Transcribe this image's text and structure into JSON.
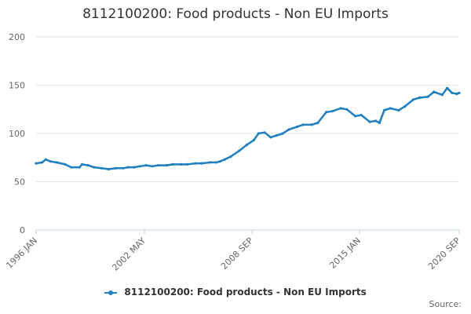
{
  "title": "8112100200: Food products - Non EU Imports",
  "legend_label": "8112100200: Food products - Non EU Imports",
  "credit": "Source:",
  "colors": {
    "series": "#1f7fbf",
    "grid": "#e6e6e6",
    "axis": "#c0d0e0"
  },
  "chart_data": {
    "type": "line",
    "title": "8112100200: Food products - Non EU Imports",
    "xlabel": "",
    "ylabel": "",
    "ylim": [
      0,
      200
    ],
    "yticks": [
      "0",
      "50",
      "100",
      "150",
      "200"
    ],
    "xticks": [
      "1996 JAN",
      "2002 MAY",
      "2008 SEP",
      "2015 JAN",
      "2020 SEP"
    ],
    "grid": true,
    "legend": "bottom-center",
    "series": [
      {
        "name": "8112100200: Food products - Non EU Imports",
        "points": [
          [
            "1996-01",
            69
          ],
          [
            "1996-06",
            70
          ],
          [
            "1996-09",
            73
          ],
          [
            "1997-01",
            71
          ],
          [
            "1997-06",
            70
          ],
          [
            "1998-01",
            68
          ],
          [
            "1998-06",
            65
          ],
          [
            "1999-01",
            65
          ],
          [
            "1999-03",
            68
          ],
          [
            "1999-08",
            67
          ],
          [
            "2000-01",
            65
          ],
          [
            "2000-07",
            64
          ],
          [
            "2001-01",
            63
          ],
          [
            "2001-07",
            64
          ],
          [
            "2002-01",
            64
          ],
          [
            "2002-05",
            65
          ],
          [
            "2002-10",
            65
          ],
          [
            "2003-03",
            66
          ],
          [
            "2003-08",
            67
          ],
          [
            "2004-01",
            66
          ],
          [
            "2004-06",
            67
          ],
          [
            "2005-01",
            67
          ],
          [
            "2005-06",
            68
          ],
          [
            "2006-01",
            68
          ],
          [
            "2006-06",
            68
          ],
          [
            "2007-01",
            69
          ],
          [
            "2007-06",
            69
          ],
          [
            "2008-01",
            70
          ],
          [
            "2008-06",
            70
          ],
          [
            "2008-09",
            71
          ],
          [
            "2009-01",
            73
          ],
          [
            "2009-06",
            76
          ],
          [
            "2010-01",
            82
          ],
          [
            "2010-07",
            88
          ],
          [
            "2011-01",
            93
          ],
          [
            "2011-05",
            100
          ],
          [
            "2011-10",
            101
          ],
          [
            "2012-03",
            96
          ],
          [
            "2012-08",
            98
          ],
          [
            "2013-01",
            100
          ],
          [
            "2013-06",
            104
          ],
          [
            "2014-01",
            107
          ],
          [
            "2014-06",
            109
          ],
          [
            "2015-01",
            109
          ],
          [
            "2015-06",
            111
          ],
          [
            "2016-01",
            122
          ],
          [
            "2016-06",
            123
          ],
          [
            "2017-01",
            126
          ],
          [
            "2017-06",
            125
          ],
          [
            "2018-01",
            118
          ],
          [
            "2018-06",
            119
          ],
          [
            "2019-01",
            112
          ],
          [
            "2019-06",
            113
          ],
          [
            "2019-09",
            111
          ],
          [
            "2020-01",
            124
          ],
          [
            "2020-06",
            126
          ],
          [
            "2021-01",
            124
          ],
          [
            "2021-06",
            128
          ],
          [
            "2022-01",
            135
          ],
          [
            "2022-06",
            137
          ],
          [
            "2023-01",
            138
          ],
          [
            "2023-06",
            143
          ],
          [
            "2024-01",
            140
          ],
          [
            "2024-05",
            147
          ],
          [
            "2024-09",
            142
          ],
          [
            "2025-01",
            141
          ],
          [
            "2025-03",
            142
          ]
        ]
      }
    ]
  }
}
